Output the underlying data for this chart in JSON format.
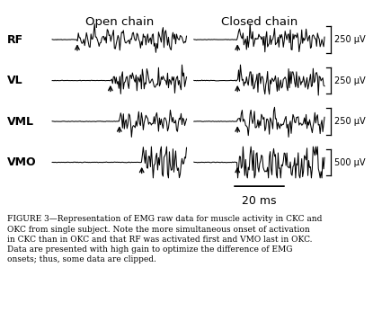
{
  "open_chain_label": "Open chain",
  "closed_chain_label": "Closed chain",
  "muscle_labels": [
    "RF",
    "VL",
    "VML",
    "VMO"
  ],
  "scale_labels": [
    "250 μV",
    "250 μV",
    "250 μV",
    "500 μV"
  ],
  "time_label": "20 ms",
  "caption_bold": "FIGURE 3—",
  "caption_normal": "Representation of EMG raw data for muscle activity in CKC and OKC from single subject. Note the more simultaneous onset of activation in CKC than in OKC and that RF was activated first and VMO last in OKC. Data are presented with high gain to optimize the difference of EMG onsets; thus, some data are clipped.",
  "bg_color": "#ffffff",
  "fig_width": 4.15,
  "fig_height": 3.47,
  "dpi": 100,
  "okc_onsets": [
    28,
    65,
    75,
    100
  ],
  "ckc_onsets": [
    50,
    50,
    50,
    50
  ],
  "n_samples": 150
}
